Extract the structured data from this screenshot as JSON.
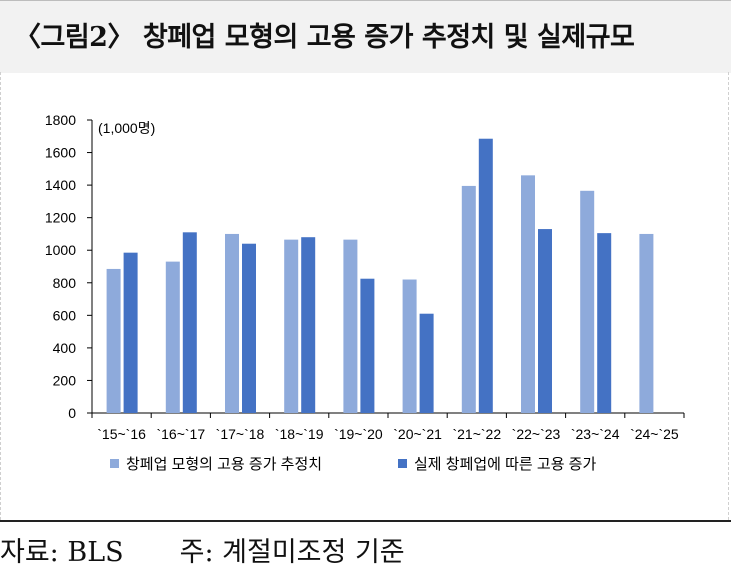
{
  "title": "〈그림2〉 창페업 모형의 고용 증가 추정치 및 실제규모",
  "footer": {
    "source": "자료: BLS",
    "note": "주: 계절미조정 기준"
  },
  "colors": {
    "estimate": "#8eaadb",
    "actual": "#4472c4",
    "title_bg": "#f2f2f2"
  },
  "chart_data": {
    "type": "bar",
    "unit_label": "(1,000명)",
    "categories": [
      "`15~`16",
      "`16~`17",
      "`17~`18",
      "`18~`19",
      "`19~`20",
      "`20~`21",
      "`21~`22",
      "`22~`23",
      "`23~`24",
      "`24~`25"
    ],
    "series": [
      {
        "name": "창페업 모형의 고용 증가 추정치",
        "color": "#8eaadb",
        "values": [
          885,
          930,
          1100,
          1065,
          1065,
          820,
          1395,
          1460,
          1365,
          1100
        ]
      },
      {
        "name": "실제 창페업에 따른 고용 증가",
        "color": "#4472c4",
        "values": [
          985,
          1110,
          1040,
          1080,
          825,
          610,
          1685,
          1130,
          1105,
          null
        ]
      }
    ],
    "ylim": [
      0,
      1800
    ],
    "yticks": [
      0,
      200,
      400,
      600,
      800,
      1000,
      1200,
      1400,
      1600,
      1800
    ],
    "legend_position": "bottom",
    "grid": false
  }
}
